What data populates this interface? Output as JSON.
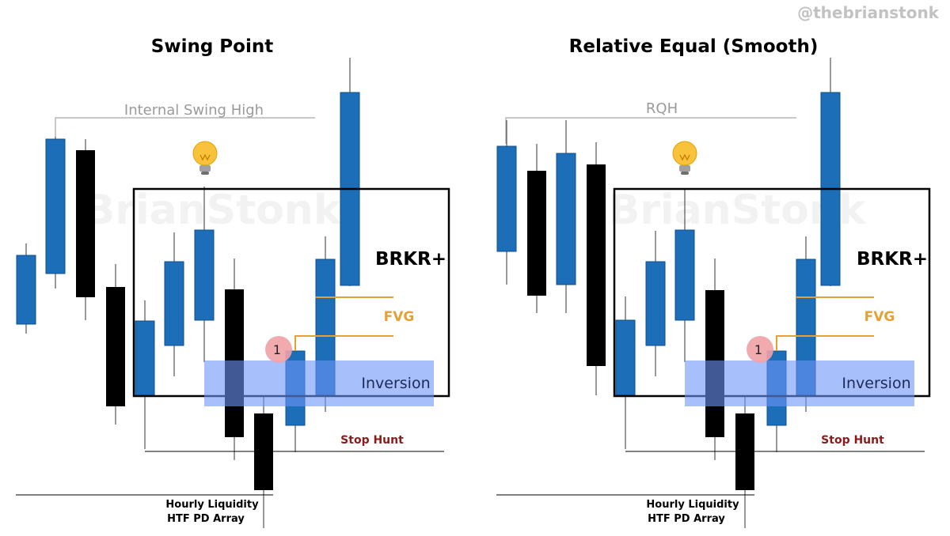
{
  "handle": "@thebrianstonk",
  "watermark": "BrianStonk",
  "colors": {
    "bull": "#1c6eb8",
    "bear": "#000000",
    "inversion": "#6d94f7",
    "fvg_line": "#e6a033",
    "badge": "#f0a2a6",
    "stop_hunt": "#8b1a1a"
  },
  "icons": {
    "idea": "lightbulb-icon"
  },
  "panels": [
    {
      "title": "Swing Point",
      "high_label": "Internal Swing High",
      "brkr_label": "BRKR+",
      "fvg_label": "FVG",
      "inversion_label": "Inversion",
      "stop_hunt_label": "Stop Hunt",
      "badge_label": "1",
      "liquidity_line1": "Hourly Liquidity",
      "liquidity_line2": "HTF PD Array"
    },
    {
      "title": "Relative Equal (Smooth)",
      "high_label": "RQH",
      "brkr_label": "BRKR+",
      "fvg_label": "FVG",
      "inversion_label": "Inversion",
      "stop_hunt_label": "Stop Hunt",
      "badge_label": "1",
      "liquidity_line1": "Hourly Liquidity",
      "liquidity_line2": "HTF PD Array"
    }
  ]
}
